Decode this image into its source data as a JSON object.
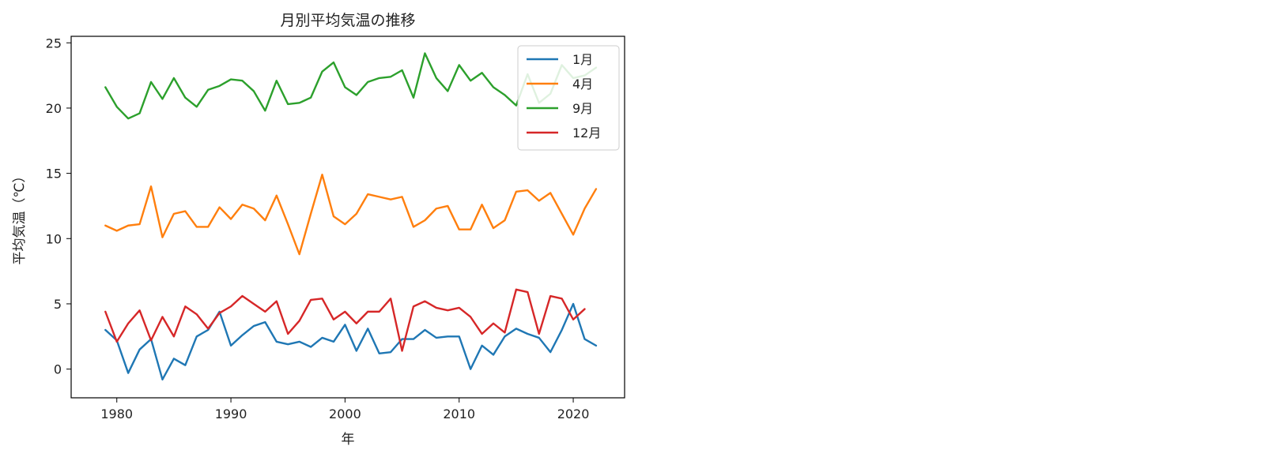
{
  "chart_data": {
    "type": "line",
    "title": "月別平均気温の推移",
    "xlabel": "年",
    "ylabel": "平均気温（℃）",
    "xlim": [
      1976,
      2024.5
    ],
    "ylim": [
      -2.2,
      25.5
    ],
    "xticks": [
      1980,
      1990,
      2000,
      2010,
      2020
    ],
    "yticks": [
      0,
      5,
      10,
      15,
      20,
      25
    ],
    "legend_position": "top-right",
    "grid": false,
    "x": [
      1979,
      1980,
      1981,
      1982,
      1983,
      1984,
      1985,
      1986,
      1987,
      1988,
      1989,
      1990,
      1991,
      1992,
      1993,
      1994,
      1995,
      1996,
      1997,
      1998,
      1999,
      2000,
      2001,
      2002,
      2003,
      2004,
      2005,
      2006,
      2007,
      2008,
      2009,
      2010,
      2011,
      2012,
      2013,
      2014,
      2015,
      2016,
      2017,
      2018,
      2019,
      2020,
      2021,
      2022
    ],
    "series": [
      {
        "name": "1月",
        "color": "#1f77b4",
        "values": [
          3.0,
          2.2,
          -0.3,
          1.5,
          2.3,
          -0.8,
          0.8,
          0.3,
          2.5,
          3.0,
          4.4,
          1.8,
          2.6,
          3.3,
          3.6,
          2.1,
          1.9,
          2.1,
          1.7,
          2.4,
          2.1,
          3.4,
          1.4,
          3.1,
          1.2,
          1.3,
          2.3,
          2.3,
          3.0,
          2.4,
          2.5,
          2.5,
          0.0,
          1.8,
          1.1,
          2.5,
          3.1,
          2.7,
          2.4,
          1.3,
          3.0,
          5.0,
          2.3,
          1.8
        ]
      },
      {
        "name": "4月",
        "color": "#ff7f0e",
        "values": [
          11.0,
          10.6,
          11.0,
          11.1,
          14.0,
          10.1,
          11.9,
          12.1,
          10.9,
          10.9,
          12.4,
          11.5,
          12.6,
          12.3,
          11.4,
          13.3,
          11.1,
          8.8,
          11.9,
          14.9,
          11.7,
          11.1,
          11.9,
          13.4,
          13.2,
          13.0,
          13.2,
          10.9,
          11.4,
          12.3,
          12.5,
          10.7,
          10.7,
          12.6,
          10.8,
          11.4,
          13.6,
          13.7,
          12.9,
          13.5,
          11.9,
          10.3,
          12.3,
          13.8
        ]
      },
      {
        "name": "9月",
        "color": "#2ca02c",
        "values": [
          21.6,
          20.1,
          19.2,
          19.6,
          22.0,
          20.7,
          22.3,
          20.8,
          20.1,
          21.4,
          21.7,
          22.2,
          22.1,
          21.3,
          19.8,
          22.1,
          20.3,
          20.4,
          20.8,
          22.8,
          23.5,
          21.6,
          21.0,
          22.0,
          22.3,
          22.4,
          22.9,
          20.8,
          24.2,
          22.3,
          21.3,
          23.3,
          22.1,
          22.7,
          21.6,
          21.0,
          20.2,
          22.6,
          20.4,
          21.1,
          23.3,
          22.3,
          22.5,
          23.1
        ]
      },
      {
        "name": "12月",
        "color": "#d62728",
        "values": [
          4.4,
          2.1,
          3.5,
          4.5,
          2.2,
          4.0,
          2.5,
          4.8,
          4.2,
          3.1,
          4.3,
          4.8,
          5.6,
          5.0,
          4.4,
          5.2,
          2.7,
          3.7,
          5.3,
          5.4,
          3.8,
          4.4,
          3.5,
          4.4,
          4.4,
          5.4,
          1.4,
          4.8,
          5.2,
          4.7,
          4.5,
          4.7,
          4.0,
          2.7,
          3.5,
          2.8,
          6.1,
          5.9,
          2.7,
          5.6,
          5.4,
          3.8,
          4.6,
          null
        ]
      }
    ]
  }
}
